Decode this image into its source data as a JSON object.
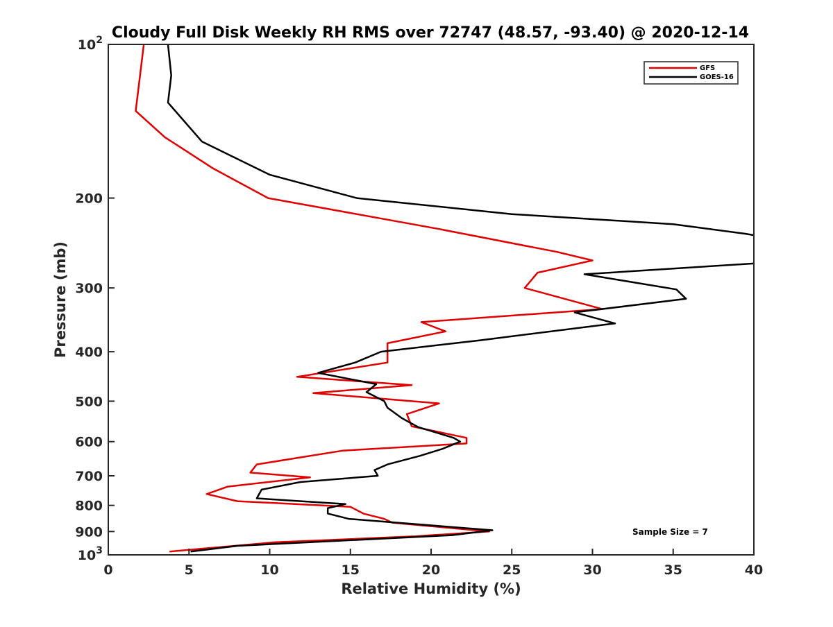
{
  "chart_data": {
    "type": "line",
    "title": "Cloudy Full Disk Weekly RH RMS over 72747 (48.57, -93.40) @ 2020-12-14",
    "xlabel": "Relative Humidity (%)",
    "ylabel": "Pressure (mb)",
    "xlim": [
      0,
      40
    ],
    "ylim": [
      100,
      1000
    ],
    "yscale": "log",
    "yreverse": true,
    "xticks": [
      "0",
      "5",
      "10",
      "15",
      "20",
      "25",
      "30",
      "35",
      "40"
    ],
    "yticks": [
      {
        "value": 100,
        "base": "10",
        "exp": "2"
      },
      {
        "value": 200,
        "label": "200"
      },
      {
        "value": 300,
        "label": "300"
      },
      {
        "value": 400,
        "label": "400"
      },
      {
        "value": 500,
        "label": "500"
      },
      {
        "value": 600,
        "label": "600"
      },
      {
        "value": 700,
        "label": "700"
      },
      {
        "value": 800,
        "label": "800"
      },
      {
        "value": 900,
        "label": "900"
      },
      {
        "value": 1000,
        "base": "10",
        "exp": "3"
      }
    ],
    "legend_position": "top-right",
    "annotation": "Sample Size = 7",
    "series": [
      {
        "name": "GFS",
        "color": "#e00000",
        "points": [
          [
            2.2,
            100
          ],
          [
            1.7,
            135
          ],
          [
            3.5,
            152
          ],
          [
            6.5,
            175
          ],
          [
            9.9,
            200
          ],
          [
            20.5,
            230
          ],
          [
            27.8,
            255
          ],
          [
            30.0,
            265
          ],
          [
            26.6,
            280
          ],
          [
            25.8,
            300
          ],
          [
            30.6,
            330
          ],
          [
            19.4,
            350
          ],
          [
            20.9,
            365
          ],
          [
            17.3,
            385
          ],
          [
            17.3,
            420
          ],
          [
            11.7,
            448
          ],
          [
            18.8,
            465
          ],
          [
            12.7,
            482
          ],
          [
            20.5,
            505
          ],
          [
            18.5,
            530
          ],
          [
            18.8,
            560
          ],
          [
            22.2,
            590
          ],
          [
            22.2,
            605
          ],
          [
            14.5,
            625
          ],
          [
            9.2,
            665
          ],
          [
            8.8,
            690
          ],
          [
            12.5,
            705
          ],
          [
            7.4,
            735
          ],
          [
            6.1,
            760
          ],
          [
            8.0,
            785
          ],
          [
            15.0,
            805
          ],
          [
            15.8,
            830
          ],
          [
            17.1,
            850
          ],
          [
            17.6,
            865
          ],
          [
            23.6,
            900
          ],
          [
            19.0,
            920
          ],
          [
            10.3,
            945
          ],
          [
            3.8,
            985
          ]
        ]
      },
      {
        "name": "GOES-16",
        "color": "#000000",
        "points": [
          [
            3.7,
            100
          ],
          [
            3.9,
            115
          ],
          [
            3.7,
            130
          ],
          [
            5.8,
            155
          ],
          [
            10.0,
            180
          ],
          [
            15.4,
            200
          ],
          [
            25.0,
            215
          ],
          [
            35.0,
            225
          ],
          [
            39.5,
            235
          ],
          [
            40.5,
            238
          ],
          [
            40.5,
            268
          ],
          [
            29.5,
            282
          ],
          [
            35.2,
            302
          ],
          [
            35.8,
            315
          ],
          [
            28.9,
            335
          ],
          [
            31.4,
            352
          ],
          [
            23.0,
            380
          ],
          [
            16.9,
            400
          ],
          [
            15.3,
            420
          ],
          [
            13.0,
            440
          ],
          [
            16.6,
            463
          ],
          [
            16.0,
            480
          ],
          [
            17.1,
            500
          ],
          [
            17.3,
            515
          ],
          [
            18.2,
            540
          ],
          [
            19.2,
            562
          ],
          [
            21.4,
            590
          ],
          [
            21.8,
            600
          ],
          [
            20.7,
            620
          ],
          [
            19.3,
            640
          ],
          [
            17.3,
            665
          ],
          [
            16.5,
            682
          ],
          [
            16.7,
            700
          ],
          [
            11.9,
            720
          ],
          [
            9.5,
            745
          ],
          [
            9.2,
            775
          ],
          [
            14.7,
            795
          ],
          [
            13.6,
            810
          ],
          [
            13.6,
            830
          ],
          [
            14.9,
            850
          ],
          [
            23.8,
            895
          ],
          [
            21.3,
            915
          ],
          [
            8.0,
            960
          ],
          [
            5.1,
            985
          ]
        ]
      }
    ]
  }
}
